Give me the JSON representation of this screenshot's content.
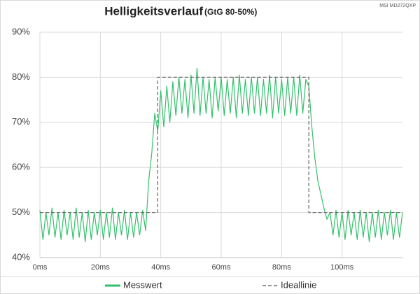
{
  "chart_data": {
    "type": "line",
    "title": "Helligkeitsverlauf",
    "subtitle": "(GtG 80-50%)",
    "annotation": "MSI MD272QXP",
    "xlim": [
      0,
      120
    ],
    "ylim": [
      40,
      90
    ],
    "xticks": [
      {
        "value": 0,
        "label": "0ms"
      },
      {
        "value": 20,
        "label": "20ms"
      },
      {
        "value": 40,
        "label": "40ms"
      },
      {
        "value": 60,
        "label": "60ms"
      },
      {
        "value": 80,
        "label": "80ms"
      },
      {
        "value": 100,
        "label": "100ms"
      }
    ],
    "yticks": [
      {
        "value": 40,
        "label": "40%"
      },
      {
        "value": 50,
        "label": "50%"
      },
      {
        "value": 60,
        "label": "60%"
      },
      {
        "value": 70,
        "label": "70%"
      },
      {
        "value": 80,
        "label": "80%"
      },
      {
        "value": 90,
        "label": "90%"
      }
    ],
    "grid": true,
    "legend": "bottom",
    "series": [
      {
        "name": "Messwert",
        "color": "#33c06c",
        "line_style": "solid",
        "x": [
          0,
          1,
          2,
          3,
          4,
          5,
          6,
          7,
          8,
          9,
          10,
          11,
          12,
          13,
          14,
          15,
          16,
          17,
          18,
          19,
          20,
          21,
          22,
          23,
          24,
          25,
          26,
          27,
          28,
          29,
          30,
          31,
          32,
          33,
          34,
          35,
          36,
          37,
          38,
          39,
          40,
          41,
          42,
          43,
          44,
          45,
          46,
          47,
          48,
          49,
          50,
          51,
          52,
          53,
          54,
          55,
          56,
          57,
          58,
          59,
          60,
          61,
          62,
          63,
          64,
          65,
          66,
          67,
          68,
          69,
          70,
          71,
          72,
          73,
          74,
          75,
          76,
          77,
          78,
          79,
          80,
          81,
          82,
          83,
          84,
          85,
          86,
          87,
          88,
          89,
          90,
          91,
          92,
          93,
          94,
          95,
          96,
          97,
          98,
          99,
          100,
          101,
          102,
          103,
          104,
          105,
          106,
          107,
          108,
          109,
          110,
          111,
          112,
          113,
          114,
          115,
          116,
          117,
          118,
          119,
          120
        ],
        "values": [
          50.5,
          44,
          50,
          45,
          51,
          44.5,
          50,
          44,
          50.5,
          45,
          50,
          44,
          51,
          44.5,
          50,
          43.5,
          50.5,
          44,
          50,
          45,
          50.5,
          44,
          50,
          44.5,
          51,
          44,
          50,
          45,
          50.5,
          44,
          50,
          44.5,
          50,
          45,
          50.5,
          46,
          57,
          63,
          72,
          68,
          77,
          69,
          78,
          70,
          79,
          71.5,
          80,
          72,
          79.5,
          71,
          80.5,
          72,
          82,
          71.5,
          80,
          72,
          79.5,
          71,
          80,
          72.5,
          80,
          71.5,
          79.5,
          72,
          80,
          71,
          80.5,
          72,
          79.5,
          71.5,
          80,
          72,
          80,
          71.5,
          79.5,
          72,
          80.5,
          71,
          80,
          72,
          79.5,
          71.5,
          80,
          72,
          80,
          71.5,
          80.5,
          72,
          79.5,
          78,
          69,
          62,
          57,
          54,
          51,
          48.5,
          50,
          45,
          50.5,
          44.5,
          50,
          44,
          50.5,
          45,
          50,
          44,
          50.5,
          44.5,
          50,
          43.5,
          50,
          44.5,
          50.5,
          44,
          50,
          45,
          50.5,
          44,
          50,
          44.5,
          50
        ]
      },
      {
        "name": "Ideallinie",
        "color": "#707070",
        "line_style": "dashed",
        "x": [
          0,
          39,
          39,
          89,
          89,
          120
        ],
        "values": [
          50,
          50,
          80,
          80,
          50,
          50
        ]
      }
    ]
  }
}
